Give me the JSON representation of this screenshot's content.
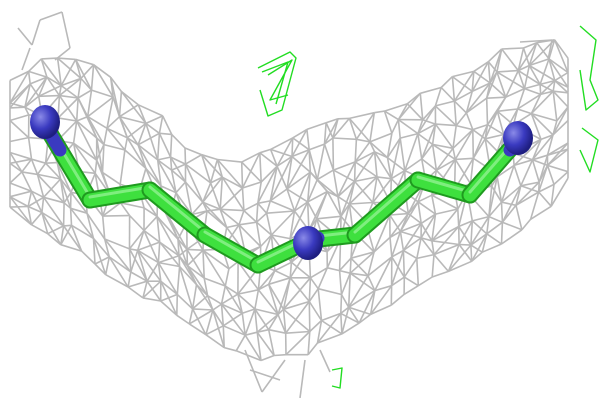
{
  "scene": {
    "kind": "molecular-structure-render",
    "background_color": "#ffffff",
    "density_mesh_color": "#b9b9b9",
    "difference_mesh_color": "#22dd22",
    "carbon_bond_color": "#3ee03e",
    "nitrogen_atom_color": "#3a3ac0",
    "atoms": [
      {
        "element": "N",
        "label": "nitrogen-left"
      },
      {
        "element": "N",
        "label": "nitrogen-center"
      },
      {
        "element": "N",
        "label": "nitrogen-right"
      }
    ]
  }
}
